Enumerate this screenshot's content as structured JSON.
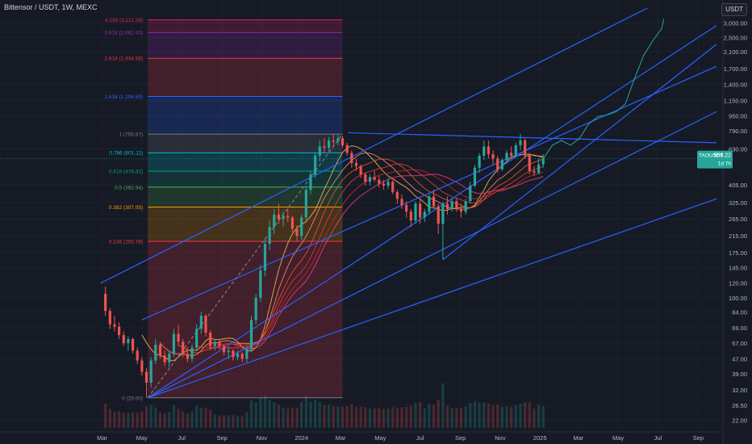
{
  "header": {
    "title": "Bittensor / USDT, 1W, MEXC",
    "currency": "USDT"
  },
  "colors": {
    "bg": "#161a25",
    "up": "#26a69a",
    "down": "#ef5350",
    "trend": "#2962ff",
    "proj": "#26a69a"
  },
  "chart_data": {
    "type": "candlestick",
    "y_scale": "log",
    "ylim": [
      20,
      3600
    ],
    "x_range": [
      "2023-02-27",
      "2025-09-29"
    ],
    "price_axis_ticks": [
      "3,000.00",
      "2,500.00",
      "2,100.00",
      "1,700.00",
      "1,400.00",
      "1,150.00",
      "950.00",
      "790.00",
      "630.00",
      "405.00",
      "325.00",
      "265.00",
      "215.00",
      "175.00",
      "145.00",
      "120.00",
      "100.00",
      "84.00",
      "69.00",
      "57.00",
      "47.00",
      "39.00",
      "32.00",
      "26.50",
      "22.00"
    ],
    "x_axis_labels": [
      {
        "label": "Mar",
        "date": "2023-03-01"
      },
      {
        "label": "May",
        "date": "2023-05-01"
      },
      {
        "label": "Jul",
        "date": "2023-07-01"
      },
      {
        "label": "Sep",
        "date": "2023-09-01"
      },
      {
        "label": "Nov",
        "date": "2023-11-01"
      },
      {
        "label": "2024",
        "date": "2024-01-01"
      },
      {
        "label": "Mar",
        "date": "2024-03-01"
      },
      {
        "label": "May",
        "date": "2024-05-01"
      },
      {
        "label": "Jul",
        "date": "2024-07-01"
      },
      {
        "label": "Sep",
        "date": "2024-09-01"
      },
      {
        "label": "Nov",
        "date": "2024-11-01"
      },
      {
        "label": "2025",
        "date": "2025-01-01"
      },
      {
        "label": "Mar",
        "date": "2025-03-01"
      },
      {
        "label": "May",
        "date": "2025-05-01"
      },
      {
        "label": "Jul",
        "date": "2025-07-01"
      },
      {
        "label": "Sep",
        "date": "2025-09-01"
      }
    ],
    "price_tag": {
      "symbol": "TAOUSDT",
      "value": "558.22",
      "countdown": "1d 7h"
    },
    "fib_start": "2023-05-10",
    "fib_end": "2024-03-04",
    "fib_levels": [
      {
        "label": "0 (29.00)",
        "value": 29.0,
        "color": "#787b86"
      },
      {
        "label": "0.236 (200.78)",
        "value": 200.78,
        "color": "#f23645"
      },
      {
        "label": "0.382 (307.05)",
        "value": 307.05,
        "color": "#ff9800"
      },
      {
        "label": "0.5 (392.94)",
        "value": 392.94,
        "color": "#4caf50"
      },
      {
        "label": "0.618 (478.82)",
        "value": 478.82,
        "color": "#089981"
      },
      {
        "label": "0.786 (601.11)",
        "value": 601.11,
        "color": "#00bcd4"
      },
      {
        "label": "1 (756.87)",
        "value": 756.87,
        "color": "#787b86"
      },
      {
        "label": "1.618 (1,206.69)",
        "value": 1206.69,
        "color": "#2962ff"
      },
      {
        "label": "2.618 (1,934.56)",
        "value": 1934.56,
        "color": "#f23645"
      },
      {
        "label": "3.618 (2,662.43)",
        "value": 2662.43,
        "color": "#9c27b0"
      },
      {
        "label": "4.236 (3,112.26)",
        "value": 3112.26,
        "color": "#e91e63"
      }
    ],
    "candles": [
      [
        "2023-03-06",
        105,
        115,
        80,
        85
      ],
      [
        "2023-03-13",
        85,
        88,
        68,
        72
      ],
      [
        "2023-03-20",
        72,
        80,
        66,
        70
      ],
      [
        "2023-03-27",
        70,
        74,
        60,
        63
      ],
      [
        "2023-04-03",
        63,
        66,
        55,
        57
      ],
      [
        "2023-04-10",
        57,
        62,
        52,
        60
      ],
      [
        "2023-04-17",
        60,
        61,
        50,
        52
      ],
      [
        "2023-04-24",
        52,
        54,
        44,
        46
      ],
      [
        "2023-05-01",
        46,
        48,
        38,
        40
      ],
      [
        "2023-05-08",
        40,
        42,
        29,
        35
      ],
      [
        "2023-05-15",
        35,
        48,
        33,
        46
      ],
      [
        "2023-05-22",
        46,
        60,
        44,
        56
      ],
      [
        "2023-05-29",
        56,
        58,
        47,
        49
      ],
      [
        "2023-06-05",
        49,
        52,
        43,
        45
      ],
      [
        "2023-06-12",
        45,
        52,
        42,
        50
      ],
      [
        "2023-06-19",
        50,
        68,
        48,
        64
      ],
      [
        "2023-06-26",
        64,
        72,
        55,
        58
      ],
      [
        "2023-07-03",
        58,
        60,
        48,
        50
      ],
      [
        "2023-07-10",
        50,
        54,
        45,
        47
      ],
      [
        "2023-07-17",
        47,
        56,
        45,
        54
      ],
      [
        "2023-07-24",
        54,
        72,
        52,
        68
      ],
      [
        "2023-07-31",
        68,
        84,
        64,
        80
      ],
      [
        "2023-08-07",
        80,
        82,
        62,
        65
      ],
      [
        "2023-08-14",
        65,
        67,
        52,
        55
      ],
      [
        "2023-08-21",
        55,
        60,
        52,
        58
      ],
      [
        "2023-08-28",
        58,
        60,
        53,
        55
      ],
      [
        "2023-09-04",
        55,
        56,
        49,
        51
      ],
      [
        "2023-09-11",
        51,
        54,
        47,
        52
      ],
      [
        "2023-09-18",
        52,
        53,
        46,
        48
      ],
      [
        "2023-09-25",
        48,
        52,
        46,
        50
      ],
      [
        "2023-10-02",
        50,
        51,
        45,
        47
      ],
      [
        "2023-10-09",
        47,
        55,
        45,
        53
      ],
      [
        "2023-10-16",
        53,
        80,
        51,
        76
      ],
      [
        "2023-10-23",
        76,
        105,
        72,
        100
      ],
      [
        "2023-10-30",
        100,
        150,
        95,
        140
      ],
      [
        "2023-11-06",
        140,
        210,
        130,
        195
      ],
      [
        "2023-11-13",
        195,
        260,
        180,
        240
      ],
      [
        "2023-11-20",
        240,
        300,
        220,
        280
      ],
      [
        "2023-11-27",
        280,
        320,
        250,
        265
      ],
      [
        "2023-12-04",
        265,
        290,
        240,
        275
      ],
      [
        "2023-12-11",
        275,
        300,
        255,
        270
      ],
      [
        "2023-12-18",
        270,
        275,
        225,
        235
      ],
      [
        "2023-12-25",
        235,
        245,
        200,
        215
      ],
      [
        "2024-01-01",
        215,
        280,
        205,
        270
      ],
      [
        "2024-01-08",
        270,
        400,
        260,
        380
      ],
      [
        "2024-01-15",
        380,
        480,
        360,
        460
      ],
      [
        "2024-01-22",
        460,
        600,
        440,
        580
      ],
      [
        "2024-01-29",
        580,
        700,
        540,
        650
      ],
      [
        "2024-02-05",
        650,
        720,
        600,
        640
      ],
      [
        "2024-02-12",
        640,
        730,
        610,
        700
      ],
      [
        "2024-02-19",
        700,
        760,
        650,
        690
      ],
      [
        "2024-02-26",
        690,
        757,
        660,
        720
      ],
      [
        "2024-03-04",
        720,
        740,
        640,
        660
      ],
      [
        "2024-03-11",
        660,
        680,
        580,
        600
      ],
      [
        "2024-03-18",
        600,
        620,
        500,
        530
      ],
      [
        "2024-03-25",
        530,
        560,
        480,
        510
      ],
      [
        "2024-04-01",
        510,
        520,
        440,
        460
      ],
      [
        "2024-04-08",
        460,
        470,
        400,
        420
      ],
      [
        "2024-04-15",
        420,
        460,
        400,
        445
      ],
      [
        "2024-04-22",
        445,
        480,
        420,
        430
      ],
      [
        "2024-04-29",
        430,
        450,
        390,
        410
      ],
      [
        "2024-05-06",
        410,
        430,
        380,
        400
      ],
      [
        "2024-05-13",
        400,
        440,
        385,
        420
      ],
      [
        "2024-05-20",
        420,
        430,
        360,
        370
      ],
      [
        "2024-05-27",
        370,
        380,
        320,
        340
      ],
      [
        "2024-06-03",
        340,
        360,
        300,
        315
      ],
      [
        "2024-06-10",
        315,
        330,
        270,
        290
      ],
      [
        "2024-06-17",
        290,
        300,
        240,
        260
      ],
      [
        "2024-06-24",
        260,
        330,
        250,
        320
      ],
      [
        "2024-07-01",
        320,
        340,
        250,
        270
      ],
      [
        "2024-07-08",
        270,
        300,
        255,
        290
      ],
      [
        "2024-07-15",
        290,
        360,
        280,
        350
      ],
      [
        "2024-07-22",
        350,
        380,
        300,
        310
      ],
      [
        "2024-07-29",
        310,
        320,
        220,
        250
      ],
      [
        "2024-08-05",
        250,
        330,
        160,
        320
      ],
      [
        "2024-08-12",
        320,
        350,
        280,
        300
      ],
      [
        "2024-08-19",
        300,
        340,
        290,
        330
      ],
      [
        "2024-08-26",
        330,
        345,
        290,
        300
      ],
      [
        "2024-09-02",
        300,
        320,
        270,
        290
      ],
      [
        "2024-09-09",
        290,
        340,
        280,
        330
      ],
      [
        "2024-09-16",
        330,
        420,
        320,
        400
      ],
      [
        "2024-09-23",
        400,
        520,
        390,
        500
      ],
      [
        "2024-09-30",
        500,
        600,
        470,
        580
      ],
      [
        "2024-10-07",
        580,
        700,
        550,
        650
      ],
      [
        "2024-10-14",
        650,
        700,
        560,
        590
      ],
      [
        "2024-10-21",
        590,
        620,
        520,
        560
      ],
      [
        "2024-10-28",
        560,
        580,
        470,
        490
      ],
      [
        "2024-11-04",
        490,
        560,
        480,
        550
      ],
      [
        "2024-11-11",
        550,
        620,
        530,
        600
      ],
      [
        "2024-11-18",
        600,
        650,
        560,
        580
      ],
      [
        "2024-11-25",
        580,
        680,
        570,
        660
      ],
      [
        "2024-12-02",
        660,
        760,
        620,
        700
      ],
      [
        "2024-12-09",
        700,
        720,
        560,
        580
      ],
      [
        "2024-12-16",
        580,
        600,
        460,
        480
      ],
      [
        "2024-12-23",
        480,
        510,
        450,
        470
      ],
      [
        "2024-12-30",
        470,
        560,
        460,
        520
      ],
      [
        "2025-01-06",
        520,
        590,
        500,
        558
      ]
    ],
    "trendlines": [
      {
        "from": [
          "2023-02-27",
          120
        ],
        "to": [
          "2025-06-15",
          3600
        ],
        "color": "#2962ff"
      },
      {
        "from": [
          "2023-05-10",
          29
        ],
        "to": [
          "2025-09-29",
          2900
        ],
        "color": "#2962ff"
      },
      {
        "from": [
          "2023-05-10",
          29
        ],
        "to": [
          "2025-09-29",
          1000
        ],
        "color": "#2962ff"
      },
      {
        "from": [
          "2023-05-10",
          29
        ],
        "to": [
          "2025-09-29",
          340
        ],
        "color": "#2962ff"
      },
      {
        "from": [
          "2023-05-01",
          76
        ],
        "to": [
          "2025-09-29",
          1750
        ],
        "color": "#2962ff"
      },
      {
        "from": [
          "2024-03-12",
          770
        ],
        "to": [
          "2025-09-29",
          680
        ],
        "color": "#2962ff"
      },
      {
        "from": [
          "2024-08-05",
          160
        ],
        "to": [
          "2025-09-29",
          2300
        ],
        "color": "#2962ff"
      },
      {
        "from": [
          "2023-05-10",
          29
        ],
        "to": [
          "2024-03-04",
          757
        ],
        "color": "#787b86",
        "dashed": true
      }
    ],
    "projection": [
      [
        "2025-01-06",
        558
      ],
      [
        "2025-01-20",
        660
      ],
      [
        "2025-02-03",
        700
      ],
      [
        "2025-02-17",
        660
      ],
      [
        "2025-03-03",
        720
      ],
      [
        "2025-03-17",
        860
      ],
      [
        "2025-03-31",
        940
      ],
      [
        "2025-04-14",
        960
      ],
      [
        "2025-04-28",
        1000
      ],
      [
        "2025-05-12",
        1100
      ],
      [
        "2025-05-26",
        1500
      ],
      [
        "2025-06-09",
        2000
      ],
      [
        "2025-06-23",
        2400
      ],
      [
        "2025-07-07",
        2800
      ],
      [
        "2025-07-10",
        3150
      ]
    ]
  }
}
